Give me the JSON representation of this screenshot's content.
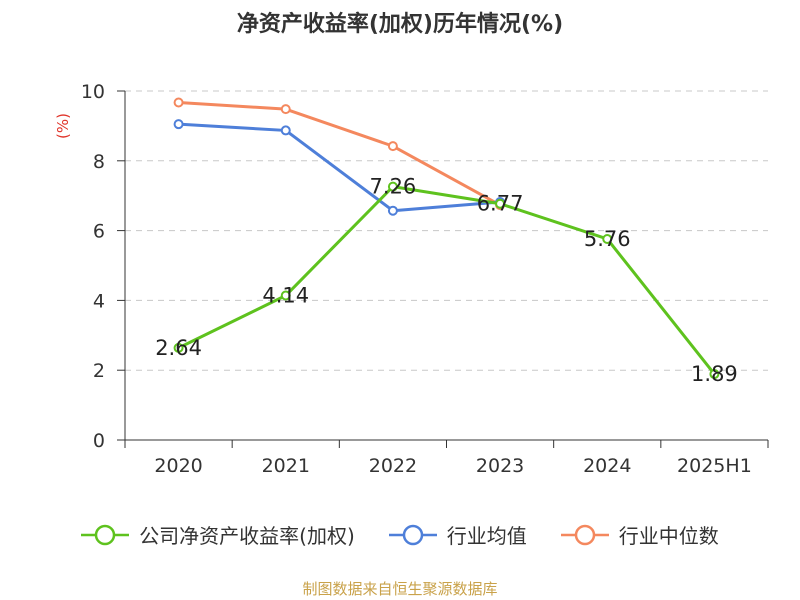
{
  "title": "净资产收益率(加权)历年情况(%)",
  "source": "制图数据来自恒生聚源数据库",
  "chart_data": {
    "type": "line",
    "title": "净资产收益率(加权)历年情况(%)",
    "ylabel": "(%)",
    "xlabel": "",
    "categories": [
      "2020",
      "2021",
      "2022",
      "2023",
      "2024",
      "2025H1"
    ],
    "ylim": [
      0,
      10
    ],
    "yticks": [
      0,
      2,
      4,
      6,
      8,
      10
    ],
    "grid": true,
    "legend_position": "bottom",
    "series": [
      {
        "name": "公司净资产收益率(加权)",
        "color": "#5ec21e",
        "values": [
          2.64,
          4.14,
          7.26,
          6.77,
          5.76,
          1.89
        ],
        "labels": [
          "2.64",
          "4.14",
          "7.26",
          "6.77",
          "5.76",
          "1.89"
        ]
      },
      {
        "name": "行业均值",
        "color": "#4e7fd9",
        "values": [
          9.05,
          8.87,
          6.57,
          6.82,
          null,
          null
        ]
      },
      {
        "name": "行业中位数",
        "color": "#f4885e",
        "values": [
          9.67,
          9.48,
          8.42,
          6.73,
          null,
          null
        ]
      }
    ]
  }
}
